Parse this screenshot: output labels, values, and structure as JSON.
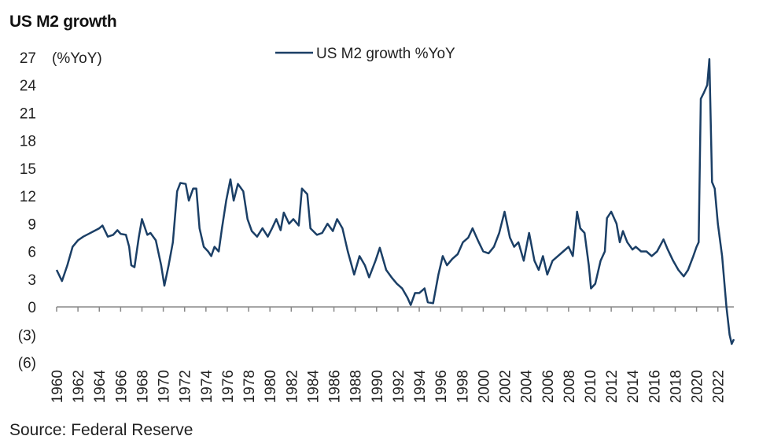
{
  "chart_data": {
    "type": "line",
    "title": "US M2 growth",
    "ylabel": "(%YoY)",
    "xlabel": "",
    "source": "Source: Federal Reserve",
    "legend": {
      "position": "top-center",
      "entries": [
        "US M2 growth %YoY"
      ]
    },
    "ylim": [
      -6,
      27
    ],
    "yticks": [
      27,
      24,
      21,
      18,
      15,
      12,
      9,
      6,
      3,
      0,
      -3,
      -6
    ],
    "ytick_labels": [
      "27",
      "24",
      "21",
      "18",
      "15",
      "12",
      "9",
      "6",
      "3",
      "0",
      "(3)",
      "(6)"
    ],
    "xlim": [
      1960,
      2023.5
    ],
    "xtick_labels": [
      "1960",
      "1962",
      "1964",
      "1966",
      "1968",
      "1970",
      "1972",
      "1974",
      "1976",
      "1978",
      "1980",
      "1982",
      "1984",
      "1986",
      "1988",
      "1990",
      "1992",
      "1994",
      "1996",
      "1998",
      "2000",
      "2002",
      "2004",
      "2006",
      "2008",
      "2010",
      "2012",
      "2014",
      "2016",
      "2018",
      "2020",
      "2022"
    ],
    "grid": false,
    "color": "#1b3f66",
    "series": [
      {
        "name": "US M2 growth %YoY",
        "x": [
          1960,
          1960.5,
          1961,
          1961.5,
          1962,
          1962.5,
          1963,
          1963.5,
          1964,
          1964.3,
          1964.8,
          1965.3,
          1965.7,
          1966,
          1966.5,
          1966.8,
          1967,
          1967.3,
          1967.7,
          1968,
          1968.5,
          1968.8,
          1969.3,
          1969.8,
          1970.1,
          1970.5,
          1970.9,
          1971.3,
          1971.6,
          1972.1,
          1972.4,
          1972.8,
          1973.1,
          1973.4,
          1973.8,
          1974.2,
          1974.5,
          1974.8,
          1975.2,
          1975.5,
          1975.9,
          1976.3,
          1976.6,
          1977,
          1977.5,
          1977.9,
          1978.3,
          1978.8,
          1979.3,
          1979.8,
          1980.2,
          1980.6,
          1981,
          1981.3,
          1981.8,
          1982.2,
          1982.7,
          1983,
          1983.5,
          1983.8,
          1984.4,
          1984.9,
          1985.4,
          1985.9,
          1986.3,
          1986.8,
          1987.3,
          1987.9,
          1988.4,
          1988.9,
          1989.3,
          1989.9,
          1990.3,
          1990.9,
          1991.4,
          1991.9,
          1992.4,
          1992.9,
          1993.2,
          1993.6,
          1994,
          1994.5,
          1994.8,
          1995.3,
          1995.8,
          1996.2,
          1996.6,
          1997.1,
          1997.6,
          1998.1,
          1998.6,
          1999,
          1999.5,
          2000,
          2000.5,
          2001,
          2001.5,
          2002,
          2002.5,
          2002.9,
          2003.3,
          2003.8,
          2004.3,
          2004.8,
          2005.2,
          2005.6,
          2006,
          2006.5,
          2007,
          2007.5,
          2008,
          2008.4,
          2008.8,
          2009.1,
          2009.5,
          2009.9,
          2010.1,
          2010.5,
          2011,
          2011.4,
          2011.6,
          2012,
          2012.5,
          2012.8,
          2013.1,
          2013.5,
          2014,
          2014.3,
          2014.8,
          2015.3,
          2015.8,
          2016.3,
          2016.9,
          2017.3,
          2017.8,
          2018.3,
          2018.8,
          2019.2,
          2019.7,
          2020,
          2020.2,
          2020.4,
          2020.7,
          2021,
          2021.2,
          2021.45,
          2021.7,
          2022,
          2022.4,
          2022.8,
          2023.1,
          2023.3,
          2023.5
        ],
        "values": [
          4,
          2.8,
          4.5,
          6.5,
          7.2,
          7.6,
          7.9,
          8.2,
          8.5,
          8.8,
          7.6,
          7.8,
          8.3,
          7.9,
          7.8,
          6.5,
          4.5,
          4.3,
          7.5,
          9.5,
          7.8,
          8,
          7.2,
          4.5,
          2.3,
          4.5,
          7,
          12.5,
          13.4,
          13.3,
          11.5,
          12.8,
          12.8,
          8.5,
          6.5,
          6,
          5.5,
          6.5,
          6,
          8.5,
          11.5,
          13.8,
          11.5,
          13.3,
          12.5,
          9.5,
          8.2,
          7.6,
          8.5,
          7.6,
          8.5,
          9.5,
          8.3,
          10.2,
          9,
          9.5,
          8.8,
          12.8,
          12.2,
          8.5,
          7.8,
          8,
          9,
          8.2,
          9.5,
          8.5,
          6,
          3.5,
          5.5,
          4.5,
          3.2,
          5,
          6.4,
          4,
          3.2,
          2.5,
          2,
          1,
          0.2,
          1.5,
          1.5,
          2,
          0.5,
          0.4,
          3.5,
          5.5,
          4.5,
          5.2,
          5.7,
          7,
          7.5,
          8.5,
          7.2,
          6,
          5.8,
          6.5,
          8,
          10.3,
          7.5,
          6.5,
          7,
          5,
          8,
          5,
          4,
          5.5,
          3.5,
          5,
          5.5,
          6,
          6.5,
          5.5,
          10.3,
          8.5,
          8,
          4.5,
          2,
          2.5,
          5,
          6,
          9.6,
          10.3,
          9,
          7,
          8.2,
          7,
          6.2,
          6.5,
          6,
          6,
          5.5,
          6,
          7.3,
          6.2,
          5,
          4,
          3.3,
          4,
          5.5,
          6.5,
          7,
          22.5,
          23.2,
          24,
          26.8,
          13.5,
          12.8,
          9,
          5.5,
          0,
          -3,
          -4,
          -3.5
        ]
      }
    ]
  }
}
